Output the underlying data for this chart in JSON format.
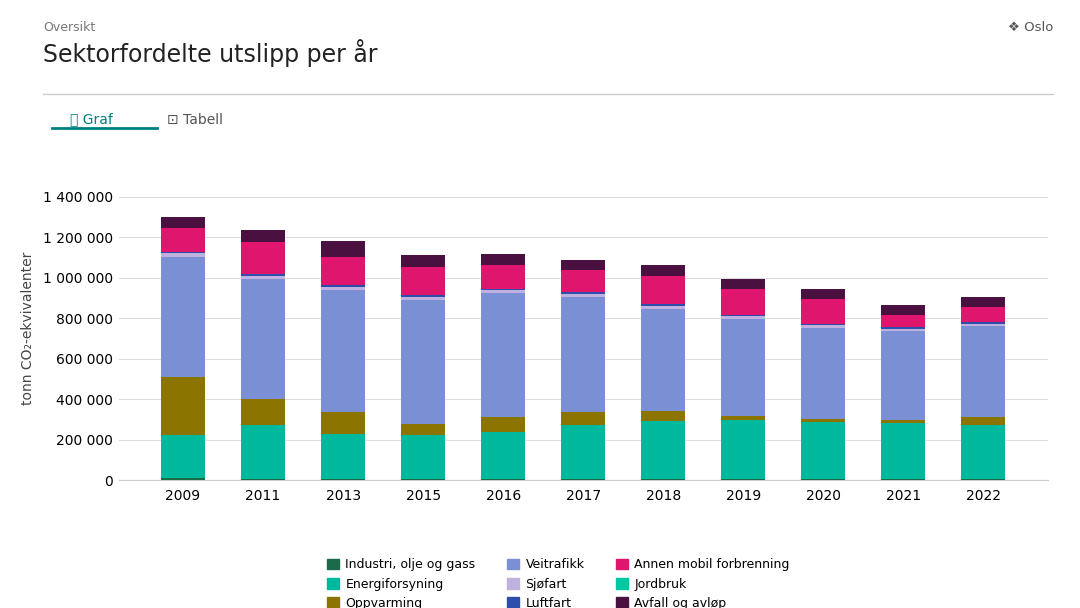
{
  "title": "Sektorfordelte utslipp per år",
  "subtitle": "Oversikt",
  "location": "Oslo",
  "ylabel": "tonn CO₂-ekvivalenter",
  "years": [
    2009,
    2011,
    2013,
    2015,
    2016,
    2017,
    2018,
    2019,
    2020,
    2021,
    2022
  ],
  "ylim": [
    0,
    1500000
  ],
  "yticks": [
    0,
    200000,
    400000,
    600000,
    800000,
    1000000,
    1200000,
    1400000
  ],
  "segments": {
    "Industri, olje og gass": {
      "color": "#1b6b4a",
      "values": [
        10000,
        7000,
        8000,
        7000,
        7000,
        7000,
        7000,
        7000,
        7000,
        7000,
        7000
      ]
    },
    "Energiforsyning": {
      "color": "#00b89c",
      "values": [
        215000,
        265000,
        220000,
        215000,
        232000,
        265000,
        285000,
        290000,
        283000,
        278000,
        268000
      ]
    },
    "Oppvarming": {
      "color": "#8b7500",
      "values": [
        285000,
        130000,
        110000,
        55000,
        75000,
        65000,
        50000,
        20000,
        12000,
        12000,
        35000
      ]
    },
    "Veitrafikk": {
      "color": "#7b8fd4",
      "values": [
        590000,
        590000,
        600000,
        615000,
        610000,
        570000,
        505000,
        480000,
        450000,
        440000,
        450000
      ]
    },
    "Sjøfart": {
      "color": "#c0b0e0",
      "values": [
        20000,
        18000,
        18000,
        15000,
        14000,
        14000,
        14000,
        13000,
        13000,
        12000,
        12000
      ]
    },
    "Luftfart": {
      "color": "#2b4faa",
      "values": [
        8000,
        8000,
        8000,
        8000,
        8000,
        8000,
        8000,
        8000,
        8000,
        8000,
        8000
      ]
    },
    "Annen mobil forbrenning": {
      "color": "#e0156e",
      "values": [
        115000,
        160000,
        140000,
        140000,
        115000,
        108000,
        140000,
        125000,
        120000,
        60000,
        75000
      ]
    },
    "Jordbruk": {
      "color": "#00c8a0",
      "values": [
        0,
        0,
        0,
        0,
        0,
        0,
        0,
        0,
        0,
        0,
        0
      ]
    },
    "Avfall og avløp": {
      "color": "#4a1040",
      "values": [
        55000,
        55000,
        75000,
        55000,
        55000,
        50000,
        55000,
        50000,
        50000,
        50000,
        50000
      ]
    }
  },
  "legend_order": [
    "Industri, olje og gass",
    "Energiforsyning",
    "Oppvarming",
    "Veitrafikk",
    "Sjøfart",
    "Luftfart",
    "Annen mobil forbrenning",
    "Jordbruk",
    "Avfall og avløp"
  ],
  "background_color": "#ffffff",
  "grid_color": "#dddddd",
  "bar_width": 0.55,
  "title_fontsize": 17,
  "subtitle_fontsize": 9,
  "axis_fontsize": 10,
  "legend_fontsize": 9
}
